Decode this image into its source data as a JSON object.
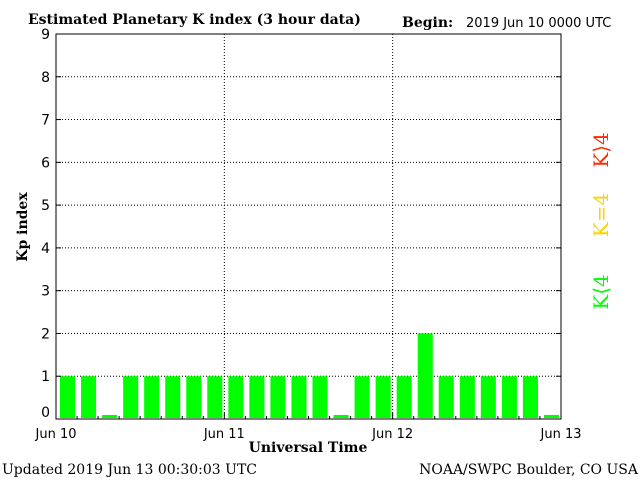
{
  "header": {
    "title": "Estimated Planetary K index (3 hour data)",
    "begin_label": "Begin:",
    "begin_value": "2019 Jun 10 0000 UTC"
  },
  "footer": {
    "updated": "Updated 2019 Jun 13 00:30:03 UTC",
    "credit": "NOAA/SWPC Boulder, CO USA"
  },
  "legend": {
    "items": [
      {
        "label": "K⟩4",
        "color": "#ff2a00"
      },
      {
        "label": "K=4",
        "color": "#ffd200"
      },
      {
        "label": "K⟨4",
        "color": "#00ff00"
      }
    ]
  },
  "colors": {
    "bar_low": "#00ff00",
    "bar_eq4": "#ffd200",
    "bar_high": "#ff2a00",
    "axis": "#000000",
    "grid": "#000000"
  },
  "chart_data": {
    "type": "bar",
    "title": "Estimated Planetary K index (3 hour data)",
    "xlabel": "Universal Time",
    "ylabel": "Kp index",
    "ylim": [
      0,
      9
    ],
    "yticks": [
      0,
      1,
      2,
      3,
      4,
      5,
      6,
      7,
      8,
      9
    ],
    "grid": true,
    "x_tick_labels": [
      "Jun 10",
      "Jun 11",
      "Jun 12",
      "Jun 13"
    ],
    "interval_hours": 3,
    "values": [
      1,
      1,
      0,
      1,
      1,
      1,
      1,
      1,
      1,
      1,
      1,
      1,
      1,
      0,
      1,
      1,
      1,
      2,
      1,
      1,
      1,
      1,
      1,
      0
    ]
  }
}
